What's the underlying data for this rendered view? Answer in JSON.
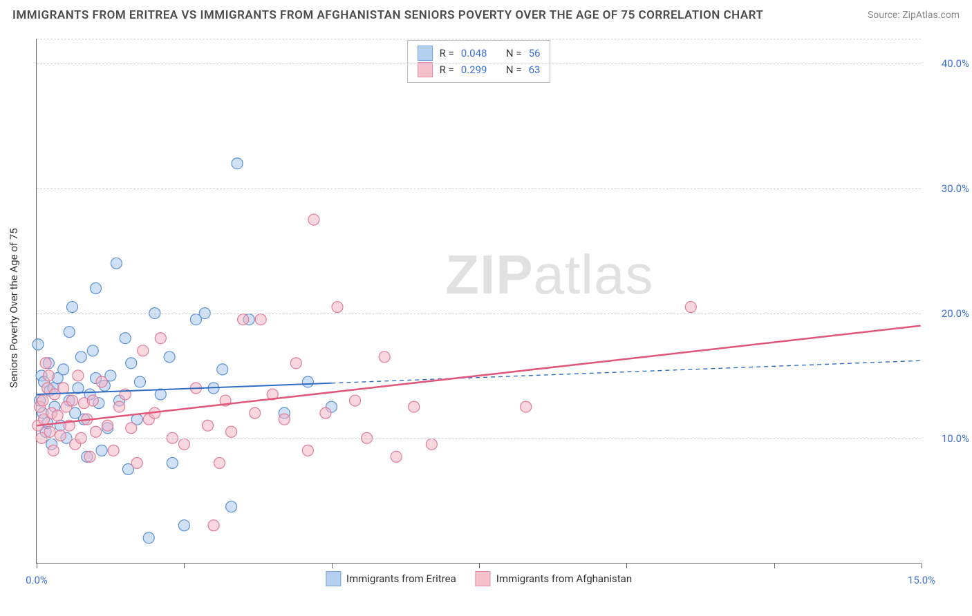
{
  "header": {
    "title": "IMMIGRANTS FROM ERITREA VS IMMIGRANTS FROM AFGHANISTAN SENIORS POVERTY OVER THE AGE OF 75 CORRELATION CHART",
    "source": "Source: ZipAtlas.com"
  },
  "chart": {
    "type": "scatter",
    "background_color": "#ffffff",
    "grid_color": "#cccccc",
    "axis_color": "#666666",
    "watermark": {
      "text_bold": "ZIP",
      "text_light": "atlas",
      "color": "#c9c9c9",
      "fontsize": 80
    },
    "x": {
      "min": 0,
      "max": 15,
      "ticks": [
        0,
        2.5,
        5,
        7.5,
        10,
        12.5,
        15
      ],
      "tick_labels": {
        "0": "0.0%",
        "15": "15.0%"
      }
    },
    "y": {
      "min": 0,
      "max": 42,
      "title": "Seniors Poverty Over the Age of 75",
      "gridlines": [
        10,
        20,
        30,
        40,
        42
      ],
      "tick_labels": {
        "10": "10.0%",
        "20": "20.0%",
        "30": "30.0%",
        "40": "40.0%"
      },
      "label_fontsize": 15,
      "label_color": "#3b6fd6"
    },
    "series": [
      {
        "id": "eritrea",
        "label": "Immigrants from Eritrea",
        "fill": "#a9c8ec",
        "stroke": "#5a8fd6",
        "fill_opacity": 0.55,
        "marker_r": 8,
        "r_value": "0.048",
        "n_value": "56",
        "trend": {
          "y_at_xmin": 13.5,
          "y_at_xmax": 16.2,
          "solid_until_x": 5.0,
          "color": "#2f6cc0",
          "width": 2
        },
        "points": [
          [
            0.02,
            17.5
          ],
          [
            0.05,
            13.0
          ],
          [
            0.08,
            15.0
          ],
          [
            0.1,
            12.0
          ],
          [
            0.12,
            14.5
          ],
          [
            0.15,
            10.5
          ],
          [
            0.18,
            11.2
          ],
          [
            0.2,
            16.0
          ],
          [
            0.22,
            13.8
          ],
          [
            0.25,
            9.5
          ],
          [
            0.28,
            14.0
          ],
          [
            0.3,
            12.5
          ],
          [
            0.35,
            14.8
          ],
          [
            0.4,
            11.0
          ],
          [
            0.45,
            15.5
          ],
          [
            0.5,
            10.0
          ],
          [
            0.55,
            13.0
          ],
          [
            0.6,
            20.5
          ],
          [
            0.65,
            12.0
          ],
          [
            0.7,
            14.0
          ],
          [
            0.75,
            16.5
          ],
          [
            0.8,
            11.5
          ],
          [
            0.85,
            8.5
          ],
          [
            0.9,
            13.5
          ],
          [
            0.95,
            17.0
          ],
          [
            1.0,
            22.0
          ],
          [
            1.05,
            12.8
          ],
          [
            1.1,
            9.0
          ],
          [
            1.15,
            14.2
          ],
          [
            1.2,
            10.8
          ],
          [
            1.25,
            15.0
          ],
          [
            1.35,
            24.0
          ],
          [
            1.4,
            13.0
          ],
          [
            1.5,
            18.0
          ],
          [
            1.55,
            7.5
          ],
          [
            1.6,
            16.0
          ],
          [
            1.7,
            11.5
          ],
          [
            1.75,
            14.5
          ],
          [
            1.9,
            2.0
          ],
          [
            2.0,
            20.0
          ],
          [
            2.1,
            13.5
          ],
          [
            2.25,
            16.5
          ],
          [
            2.3,
            8.0
          ],
          [
            2.5,
            3.0
          ],
          [
            2.7,
            19.5
          ],
          [
            2.85,
            20.0
          ],
          [
            3.0,
            14.0
          ],
          [
            3.15,
            15.5
          ],
          [
            3.3,
            4.5
          ],
          [
            3.4,
            32.0
          ],
          [
            3.6,
            19.5
          ],
          [
            4.2,
            12.0
          ],
          [
            4.6,
            14.5
          ],
          [
            5.0,
            12.5
          ],
          [
            1.0,
            14.8
          ],
          [
            0.55,
            18.5
          ]
        ]
      },
      {
        "id": "afghanistan",
        "label": "Immigrants from Afghanistan",
        "fill": "#f3b6c4",
        "stroke": "#e17a94",
        "fill_opacity": 0.55,
        "marker_r": 8,
        "r_value": "0.299",
        "n_value": "63",
        "trend": {
          "y_at_xmin": 11.0,
          "y_at_xmax": 19.0,
          "solid_until_x": 15.0,
          "color": "#e0557a",
          "width": 2.5
        },
        "points": [
          [
            0.02,
            11.0
          ],
          [
            0.05,
            12.5
          ],
          [
            0.08,
            10.0
          ],
          [
            0.1,
            13.0
          ],
          [
            0.12,
            11.5
          ],
          [
            0.15,
            16.0
          ],
          [
            0.18,
            14.0
          ],
          [
            0.2,
            15.0
          ],
          [
            0.22,
            10.5
          ],
          [
            0.25,
            12.0
          ],
          [
            0.28,
            9.0
          ],
          [
            0.3,
            13.5
          ],
          [
            0.35,
            11.8
          ],
          [
            0.4,
            10.2
          ],
          [
            0.45,
            14.0
          ],
          [
            0.5,
            12.5
          ],
          [
            0.55,
            11.0
          ],
          [
            0.6,
            13.0
          ],
          [
            0.65,
            9.5
          ],
          [
            0.7,
            15.0
          ],
          [
            0.75,
            10.0
          ],
          [
            0.8,
            12.8
          ],
          [
            0.85,
            11.5
          ],
          [
            0.9,
            8.5
          ],
          [
            0.95,
            13.0
          ],
          [
            1.0,
            10.5
          ],
          [
            1.1,
            14.5
          ],
          [
            1.2,
            11.0
          ],
          [
            1.3,
            9.0
          ],
          [
            1.4,
            12.5
          ],
          [
            1.5,
            13.5
          ],
          [
            1.6,
            10.8
          ],
          [
            1.7,
            8.0
          ],
          [
            1.8,
            17.0
          ],
          [
            1.9,
            11.5
          ],
          [
            2.0,
            12.0
          ],
          [
            2.1,
            18.0
          ],
          [
            2.3,
            10.0
          ],
          [
            2.5,
            9.5
          ],
          [
            2.7,
            14.0
          ],
          [
            2.9,
            11.0
          ],
          [
            3.0,
            3.0
          ],
          [
            3.2,
            13.0
          ],
          [
            3.3,
            10.5
          ],
          [
            3.5,
            19.5
          ],
          [
            3.7,
            12.0
          ],
          [
            3.8,
            19.5
          ],
          [
            4.0,
            13.5
          ],
          [
            4.2,
            11.5
          ],
          [
            4.4,
            16.0
          ],
          [
            4.6,
            9.0
          ],
          [
            4.7,
            27.5
          ],
          [
            4.9,
            12.0
          ],
          [
            5.1,
            20.5
          ],
          [
            5.4,
            13.0
          ],
          [
            5.6,
            10.0
          ],
          [
            5.9,
            16.5
          ],
          [
            6.1,
            8.5
          ],
          [
            6.4,
            12.5
          ],
          [
            6.7,
            9.5
          ],
          [
            8.3,
            12.5
          ],
          [
            11.1,
            20.5
          ],
          [
            3.1,
            8.0
          ]
        ]
      }
    ],
    "stats_legend": {
      "r_label": "R =",
      "n_label": "N ="
    },
    "bottom_legend": {
      "swatch_size": 22
    }
  }
}
